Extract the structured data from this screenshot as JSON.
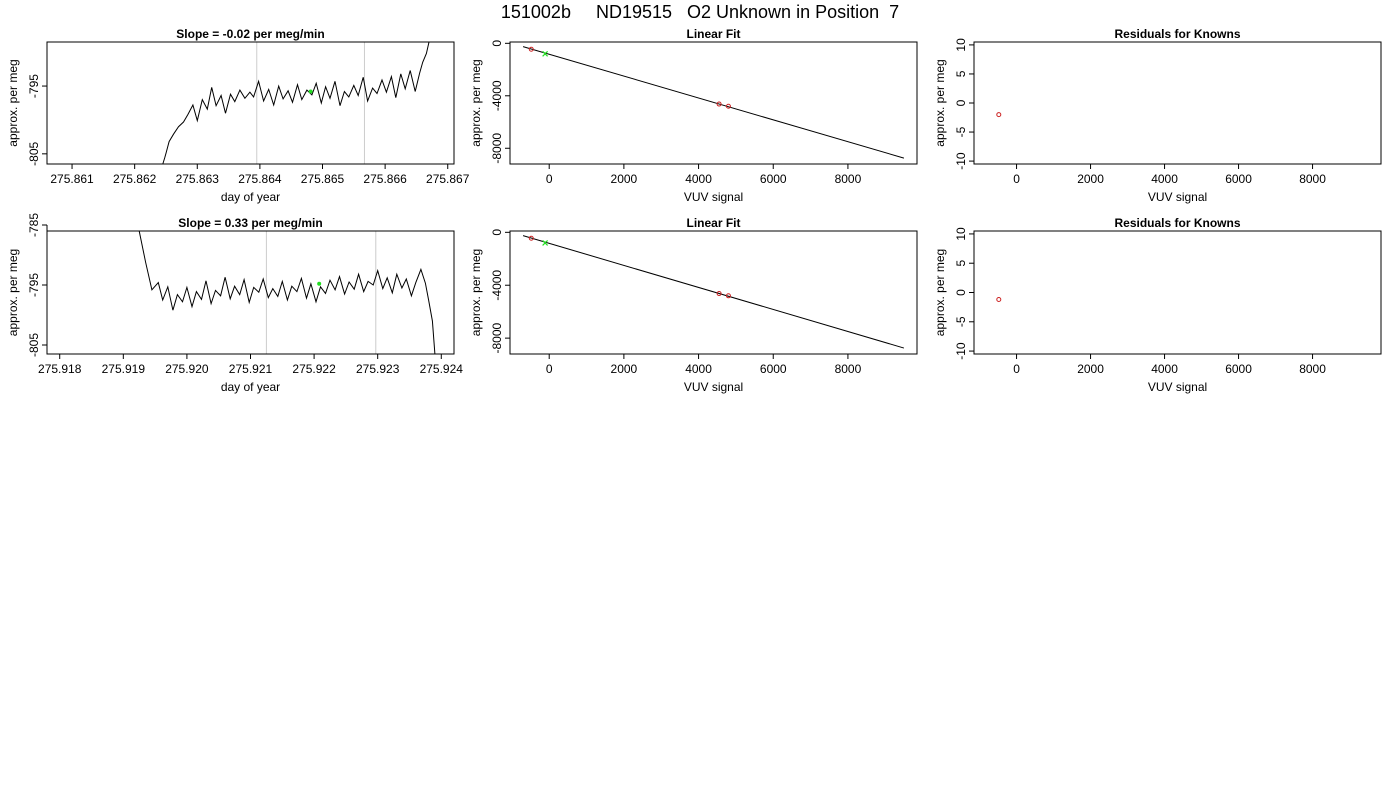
{
  "page_title": "151002b     ND19515   O2 Unknown in Position  7",
  "colors": {
    "trace": "#000000",
    "grid": "#cccccc",
    "known": "#cc2222",
    "unknown": "#22dd22",
    "fit": "#000000"
  },
  "chart_data": [
    {
      "type": "line",
      "title": "Slope =  -0.02  per meg/min",
      "xlabel": "day of year",
      "ylabel": "approx. per meg",
      "xlim": [
        275.8606,
        275.8671
      ],
      "ylim": [
        -806.5,
        -788.5
      ],
      "xticks": [
        "275.861",
        "275.862",
        "275.863",
        "275.864",
        "275.865",
        "275.866",
        "275.867"
      ],
      "yticks": [
        "-805",
        "-795"
      ],
      "vlines": [
        275.86395,
        275.86567
      ],
      "unknown_point": {
        "x": 275.86481,
        "y": -795.8
      },
      "series": [
        {
          "x": [
            275.86245,
            275.86248,
            275.8625,
            275.86255,
            275.86262,
            275.8627,
            275.86278,
            275.86285,
            275.86293,
            275.863,
            275.86308,
            275.86316,
            275.86323,
            275.8633,
            275.86338,
            275.86345,
            275.86353,
            275.8636,
            275.86368,
            275.86376,
            275.86384,
            275.8639,
            275.86398,
            275.86406,
            275.86414,
            275.86422,
            275.8643,
            275.86437,
            275.86445,
            275.86452,
            275.8646,
            275.86467,
            275.86475,
            275.86483,
            275.8649,
            275.86498,
            275.86505,
            275.86512,
            275.8652,
            275.86528,
            275.86535,
            275.86542,
            275.8655,
            275.86557,
            275.86565,
            275.86572,
            275.8658,
            275.86587,
            275.86595,
            275.86602,
            275.8661,
            275.86617,
            275.86625,
            275.86632,
            275.8664,
            275.86648,
            275.86655,
            275.8666,
            275.86666,
            275.8667
          ],
          "y": [
            -806.5,
            -805.6,
            -804.9,
            -803.2,
            -802.1,
            -801.0,
            -800.3,
            -799.2,
            -797.8,
            -800.1,
            -797.0,
            -798.4,
            -795.2,
            -797.9,
            -796.4,
            -799.0,
            -796.2,
            -797.3,
            -795.6,
            -796.8,
            -795.9,
            -796.6,
            -794.3,
            -797.2,
            -795.5,
            -797.8,
            -795.0,
            -796.9,
            -795.7,
            -797.4,
            -794.8,
            -797.0,
            -795.6,
            -796.3,
            -794.6,
            -797.5,
            -795.1,
            -796.8,
            -794.3,
            -797.9,
            -795.8,
            -796.6,
            -794.9,
            -796.4,
            -793.7,
            -797.2,
            -795.3,
            -796.1,
            -794.1,
            -795.9,
            -793.6,
            -796.7,
            -793.2,
            -795.4,
            -792.7,
            -795.8,
            -793.1,
            -791.5,
            -790.2,
            -788.5
          ]
        }
      ]
    },
    {
      "type": "scatter",
      "title": "Linear Fit",
      "xlabel": "VUV signal",
      "ylabel": "approx. per meg",
      "xlim": [
        -1050,
        9850
      ],
      "ylim": [
        -9200,
        100
      ],
      "xticks": [
        "0",
        "2000",
        "4000",
        "6000",
        "8000"
      ],
      "yticks": [
        "0",
        "-4000",
        "-8000"
      ],
      "fit_line": {
        "x": [
          -700,
          9500
        ],
        "y": [
          -250,
          -8750
        ]
      },
      "known_points": {
        "x": [
          -480,
          4550,
          4800
        ],
        "y": [
          -450,
          -4630,
          -4800
        ]
      },
      "unknown_points": {
        "x": [
          -110
        ],
        "y": [
          -800
        ]
      }
    },
    {
      "type": "scatter",
      "title": "Residuals for Knowns",
      "xlabel": "VUV signal",
      "ylabel": "approx. per meg",
      "xlim": [
        -1150,
        9850
      ],
      "ylim": [
        -10.5,
        10.5
      ],
      "xticks": [
        "0",
        "2000",
        "4000",
        "6000",
        "8000"
      ],
      "yticks": [
        "10",
        "5",
        "0",
        "-5",
        "-10"
      ],
      "points": {
        "x": [
          -480
        ],
        "y": [
          -2
        ]
      }
    },
    {
      "type": "line",
      "title": "Slope =  0.33  per meg/min",
      "xlabel": "day of year",
      "ylabel": "approx. per meg",
      "xlim": [
        275.9178,
        275.9242
      ],
      "ylim": [
        -806.5,
        -786
      ],
      "xticks": [
        "275.918",
        "275.919",
        "275.920",
        "275.921",
        "275.922",
        "275.923",
        "275.924"
      ],
      "yticks": [
        "-805",
        "-795",
        "-785"
      ],
      "vlines": [
        275.92125,
        275.92297
      ],
      "unknown_point": {
        "x": 275.92208,
        "y": -794.8
      },
      "series": [
        {
          "x": [
            275.91925,
            275.91935,
            275.91945,
            275.91955,
            275.91962,
            275.9197,
            275.91978,
            275.91985,
            275.91993,
            275.92,
            275.92008,
            275.92015,
            275.92023,
            275.9203,
            275.92038,
            275.92045,
            275.92053,
            275.9206,
            275.92068,
            275.92075,
            275.92083,
            275.9209,
            275.92098,
            275.92105,
            275.92113,
            275.9212,
            275.92128,
            275.92135,
            275.92143,
            275.9215,
            275.92158,
            275.92165,
            275.92173,
            275.9218,
            275.92188,
            275.92195,
            275.92203,
            275.9221,
            275.92218,
            275.92225,
            275.92233,
            275.9224,
            275.92248,
            275.92255,
            275.92263,
            275.9227,
            275.92278,
            275.92285,
            275.92293,
            275.923,
            275.92308,
            275.92315,
            275.92323,
            275.9233,
            275.92338,
            275.92345,
            275.92353,
            275.9236,
            275.92368,
            275.92375,
            275.9238,
            275.92386,
            275.9239
          ],
          "y": [
            -786.0,
            -791.2,
            -795.8,
            -794.6,
            -797.5,
            -795.3,
            -799.2,
            -796.6,
            -797.8,
            -795.4,
            -798.6,
            -796.1,
            -797.4,
            -794.3,
            -798.1,
            -795.9,
            -796.8,
            -793.7,
            -797.3,
            -795.2,
            -796.6,
            -794.1,
            -797.9,
            -795.4,
            -796.2,
            -794.0,
            -797.1,
            -795.6,
            -796.9,
            -794.4,
            -797.5,
            -795.2,
            -796.1,
            -793.9,
            -797.2,
            -794.8,
            -797.8,
            -795.3,
            -796.4,
            -794.2,
            -795.8,
            -793.6,
            -796.5,
            -794.5,
            -795.7,
            -793.2,
            -796.1,
            -794.4,
            -795.0,
            -792.6,
            -795.6,
            -793.8,
            -796.3,
            -793.2,
            -795.5,
            -794.0,
            -796.8,
            -794.6,
            -792.4,
            -794.7,
            -797.5,
            -801.0,
            -806.5
          ]
        }
      ]
    },
    {
      "type": "scatter",
      "title": "Linear Fit",
      "xlabel": "VUV signal",
      "ylabel": "approx. per meg",
      "xlim": [
        -1050,
        9850
      ],
      "ylim": [
        -9200,
        100
      ],
      "xticks": [
        "0",
        "2000",
        "4000",
        "6000",
        "8000"
      ],
      "yticks": [
        "0",
        "-4000",
        "-8000"
      ],
      "fit_line": {
        "x": [
          -700,
          9500
        ],
        "y": [
          -250,
          -8750
        ]
      },
      "known_points": {
        "x": [
          -480,
          4550,
          4800
        ],
        "y": [
          -450,
          -4630,
          -4800
        ]
      },
      "unknown_points": {
        "x": [
          -110
        ],
        "y": [
          -800
        ]
      }
    },
    {
      "type": "scatter",
      "title": "Residuals for Knowns",
      "xlabel": "VUV signal",
      "ylabel": "approx. per meg",
      "xlim": [
        -1150,
        9850
      ],
      "ylim": [
        -10.5,
        10.5
      ],
      "xticks": [
        "0",
        "2000",
        "4000",
        "6000",
        "8000"
      ],
      "yticks": [
        "10",
        "5",
        "0",
        "-5",
        "-10"
      ],
      "points": {
        "x": [
          -480
        ],
        "y": [
          -1.2
        ]
      }
    }
  ]
}
